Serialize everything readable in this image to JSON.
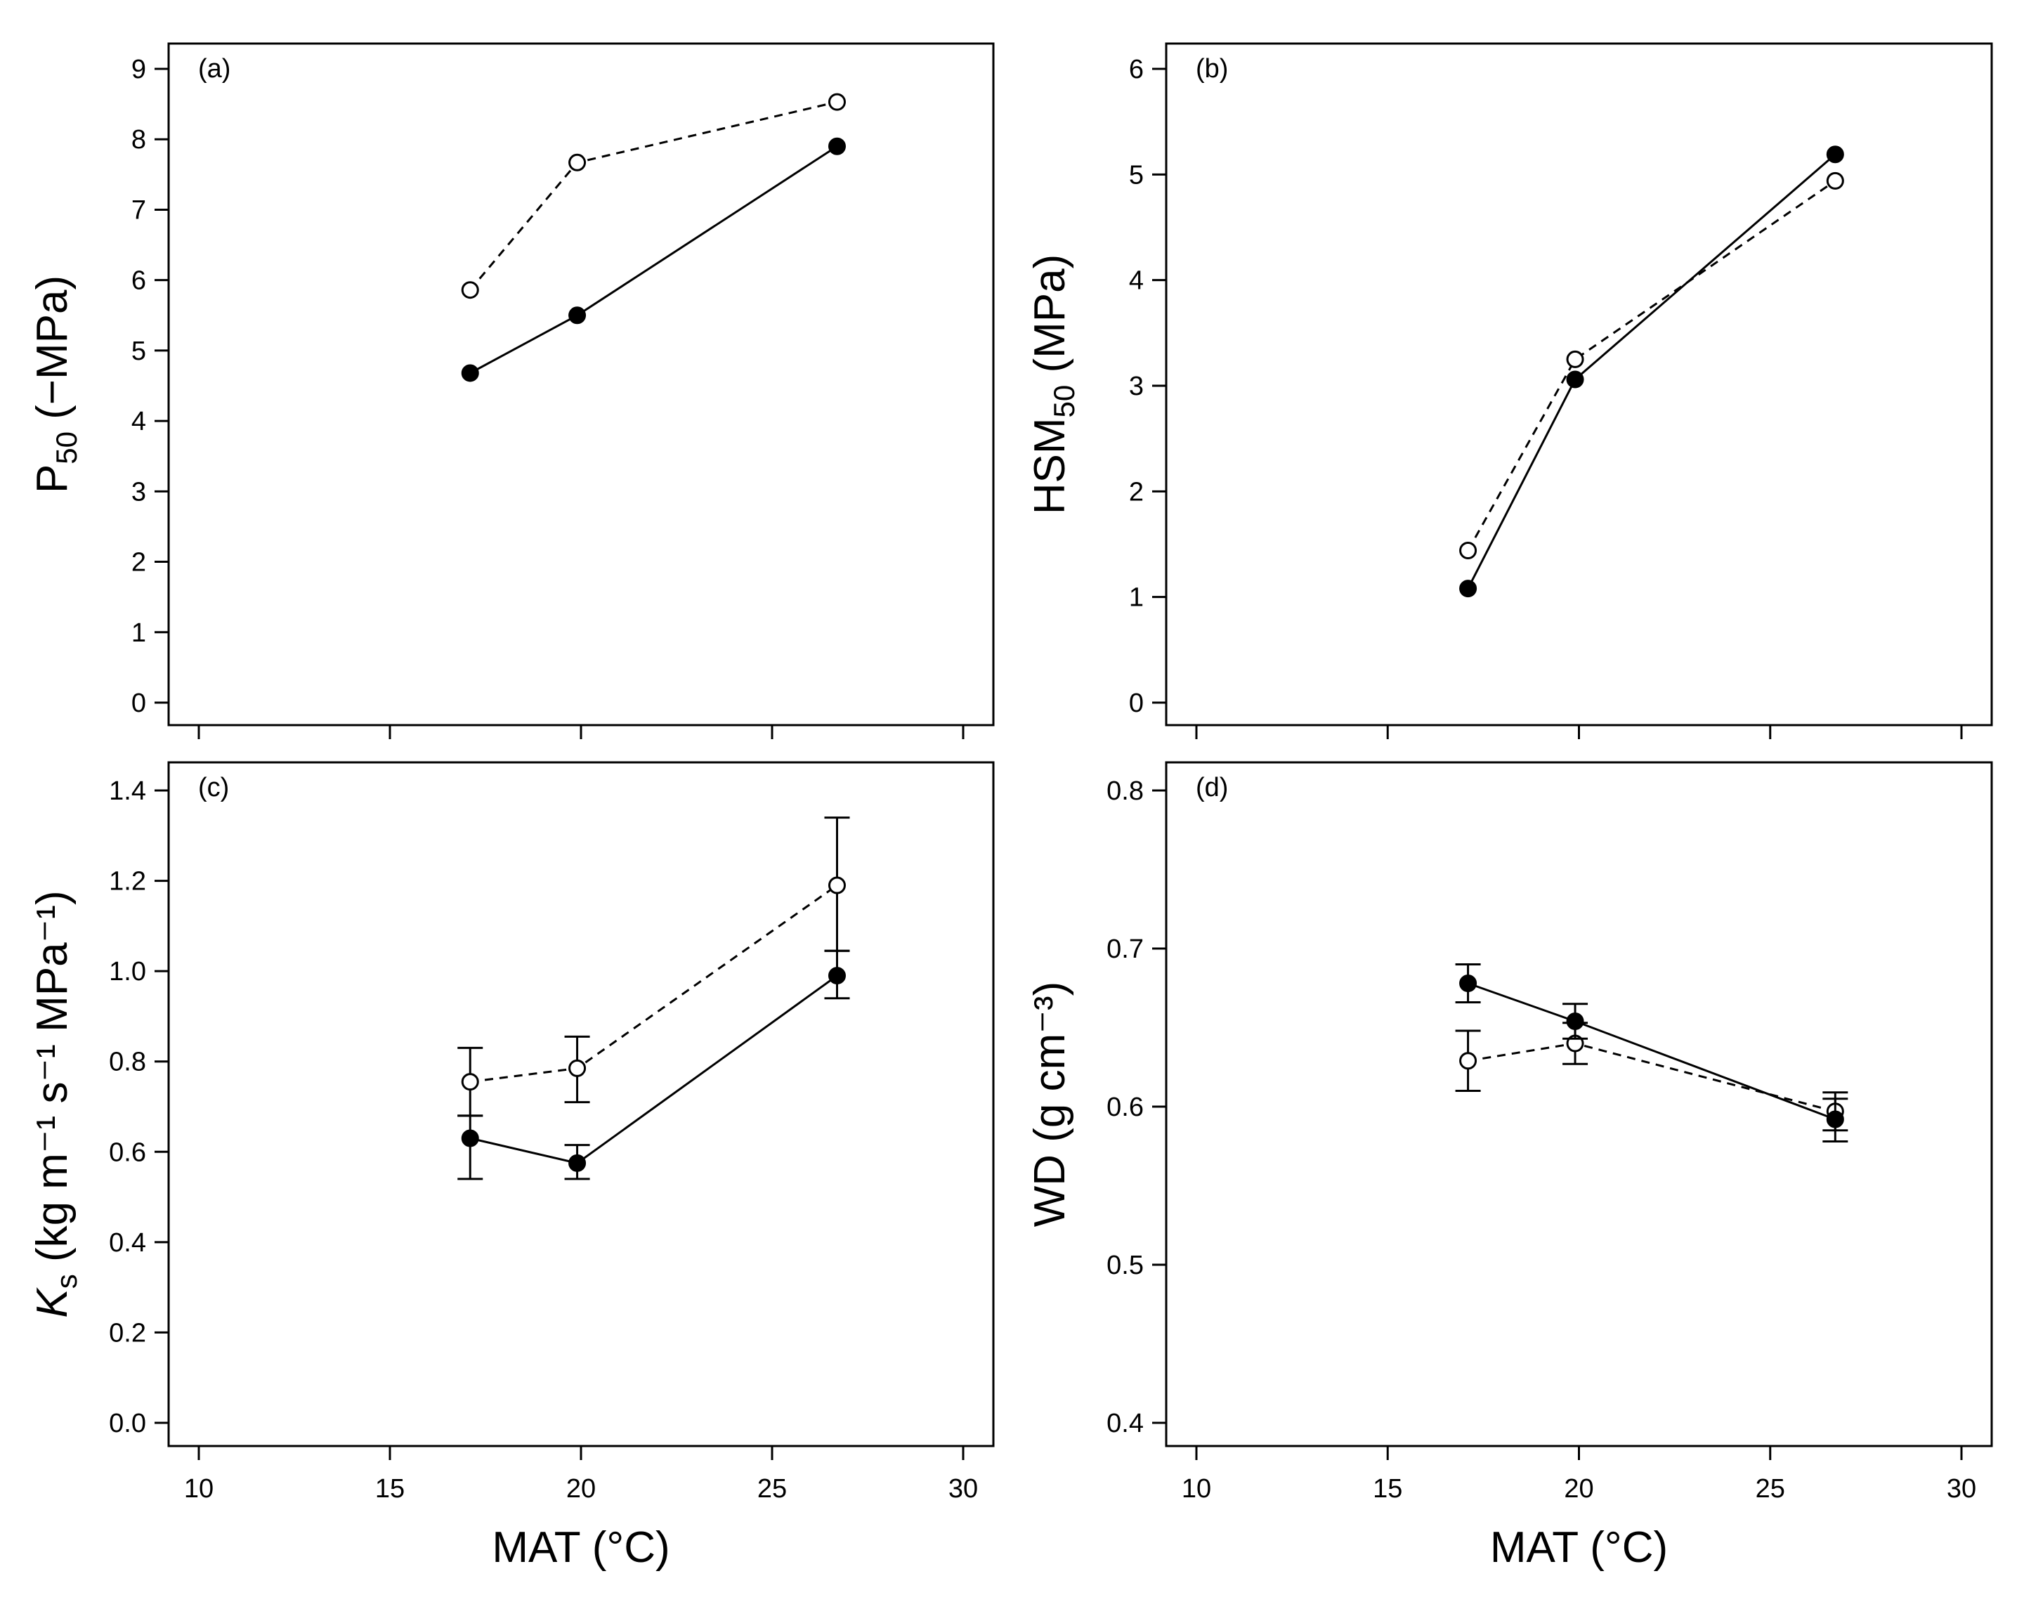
{
  "chart_data": [
    {
      "panel": "(a)",
      "type": "line",
      "ylabel_main": "P",
      "ylabel_sub": "50",
      "ylabel_unit": "(−MPa)",
      "xlabel": "",
      "ylim": [
        0,
        9
      ],
      "xlim": [
        10,
        30
      ],
      "yticks": [
        "0",
        "1",
        "2",
        "3",
        "4",
        "5",
        "6",
        "7",
        "8",
        "9"
      ],
      "xticks": [],
      "series": [
        {
          "name": "filled",
          "marker": "filled",
          "dash": false,
          "x": [
            17.1,
            19.9,
            26.7
          ],
          "y": [
            4.68,
            5.5,
            7.9
          ]
        },
        {
          "name": "open",
          "marker": "open",
          "dash": true,
          "x": [
            17.1,
            19.9,
            26.7
          ],
          "y": [
            5.86,
            7.67,
            8.53
          ]
        }
      ]
    },
    {
      "panel": "(b)",
      "type": "line",
      "ylabel_main": "HSM",
      "ylabel_sub": "50",
      "ylabel_unit": "(MPa)",
      "xlabel": "",
      "ylim": [
        0,
        6
      ],
      "xlim": [
        10,
        30
      ],
      "yticks": [
        "0",
        "1",
        "2",
        "3",
        "4",
        "5",
        "6"
      ],
      "xticks": [],
      "series": [
        {
          "name": "filled",
          "marker": "filled",
          "dash": false,
          "x": [
            17.1,
            19.9,
            26.7
          ],
          "y": [
            1.08,
            3.06,
            5.19
          ]
        },
        {
          "name": "open",
          "marker": "open",
          "dash": true,
          "x": [
            17.1,
            19.9,
            26.7
          ],
          "y": [
            1.44,
            3.25,
            4.94
          ]
        }
      ]
    },
    {
      "panel": "(c)",
      "type": "line",
      "ylabel_main": "K",
      "ylabel_sub": "s",
      "ylabel_unit": "(kg m⁻¹ s⁻¹ MPa⁻¹)",
      "xlabel": "MAT (°C)",
      "ylim": [
        0,
        1.4
      ],
      "xlim": [
        10,
        30
      ],
      "yticks": [
        "0.0",
        "0.2",
        "0.4",
        "0.6",
        "0.8",
        "1.0",
        "1.2",
        "1.4"
      ],
      "xticks": [
        "10",
        "15",
        "20",
        "25",
        "30"
      ],
      "series": [
        {
          "name": "filled",
          "marker": "filled",
          "dash": false,
          "x": [
            17.1,
            19.9,
            26.7
          ],
          "y": [
            0.63,
            0.575,
            0.99
          ],
          "err_low": [
            0.54,
            0.54,
            0.94
          ],
          "err_high": [
            0.68,
            0.615,
            1.045
          ]
        },
        {
          "name": "open",
          "marker": "open",
          "dash": true,
          "x": [
            17.1,
            19.9,
            26.7
          ],
          "y": [
            0.755,
            0.785,
            1.19
          ],
          "err_low": [
            0.68,
            0.71,
            1.045
          ],
          "err_high": [
            0.83,
            0.855,
            1.34
          ]
        }
      ]
    },
    {
      "panel": "(d)",
      "type": "line",
      "ylabel_main": "WD",
      "ylabel_sub": "",
      "ylabel_unit": "(g cm⁻³)",
      "xlabel": "MAT (°C)",
      "ylim": [
        0.4,
        0.8
      ],
      "xlim": [
        10,
        30
      ],
      "yticks": [
        "0.4",
        "0.5",
        "0.6",
        "0.7",
        "0.8"
      ],
      "xticks": [
        "10",
        "15",
        "20",
        "25",
        "30"
      ],
      "series": [
        {
          "name": "filled",
          "marker": "filled",
          "dash": false,
          "x": [
            17.1,
            19.9,
            26.7
          ],
          "y": [
            0.678,
            0.654,
            0.592
          ],
          "err_low": [
            0.666,
            0.643,
            0.578
          ],
          "err_high": [
            0.69,
            0.665,
            0.605
          ]
        },
        {
          "name": "open",
          "marker": "open",
          "dash": true,
          "x": [
            17.1,
            19.9,
            26.7
          ],
          "y": [
            0.629,
            0.64,
            0.597
          ],
          "err_low": [
            0.61,
            0.627,
            0.585
          ],
          "err_high": [
            0.648,
            0.653,
            0.609
          ]
        }
      ]
    }
  ]
}
